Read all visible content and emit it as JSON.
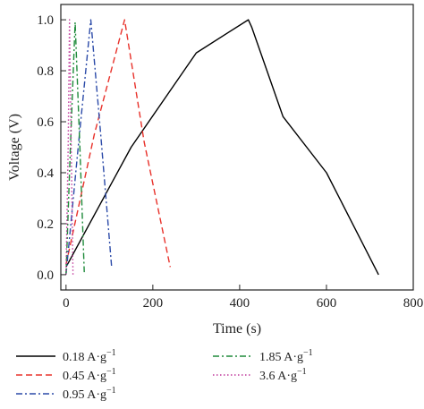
{
  "chart_data": {
    "type": "line",
    "title": "",
    "xlabel": "Time (s)",
    "ylabel": "Voltage (V)",
    "xlim": [
      -12,
      800
    ],
    "ylim": [
      -0.06,
      1.06
    ],
    "xticks": [
      0,
      200,
      400,
      600,
      800
    ],
    "xtick_labels": [
      "0",
      "200",
      "400",
      "600",
      "800"
    ],
    "yticks": [
      0.0,
      0.2,
      0.4,
      0.6,
      0.8,
      1.0
    ],
    "ytick_labels": [
      "0.0",
      "0.2",
      "0.4",
      "0.6",
      "0.8",
      "1.0"
    ],
    "grid": false,
    "legend_position": "bottom",
    "series": [
      {
        "name": "0.18 A·g",
        "name_superscript": "−1",
        "color": "#000000",
        "dash": "solid",
        "points": [
          [
            0,
            0.03
          ],
          [
            150,
            0.5
          ],
          [
            300,
            0.87
          ],
          [
            420,
            1.0
          ],
          [
            428,
            0.97
          ],
          [
            500,
            0.62
          ],
          [
            600,
            0.4
          ],
          [
            720,
            0.0
          ]
        ]
      },
      {
        "name": "0.45 A·g",
        "name_superscript": "−1",
        "color": "#e8312a",
        "dash": "dashed",
        "points": [
          [
            0,
            0.04
          ],
          [
            65,
            0.55
          ],
          [
            135,
            1.0
          ],
          [
            180,
            0.52
          ],
          [
            240,
            0.03
          ]
        ]
      },
      {
        "name": "0.95 A·g",
        "name_superscript": "−1",
        "color": "#2b4aa8",
        "dash": "dashdot",
        "points": [
          [
            0,
            0.0
          ],
          [
            28,
            0.5
          ],
          [
            57,
            1.0
          ],
          [
            80,
            0.55
          ],
          [
            105,
            0.03
          ]
        ]
      },
      {
        "name": "1.85 A·g",
        "name_superscript": "−1",
        "color": "#1e8a3a",
        "dash": "dashdot",
        "points": [
          [
            0,
            0.0
          ],
          [
            10,
            0.5
          ],
          [
            21,
            0.99
          ],
          [
            32,
            0.5
          ],
          [
            42,
            0.01
          ]
        ]
      },
      {
        "name": "3.6 A·g",
        "name_superscript": "−1",
        "color": "#c0399b",
        "dash": "dotted",
        "points": [
          [
            0,
            0.0
          ],
          [
            5,
            0.5
          ],
          [
            8,
            1.0
          ],
          [
            12,
            0.5
          ],
          [
            16,
            0.0
          ]
        ]
      }
    ],
    "legend_layout": [
      [
        0,
        3
      ],
      [
        1,
        4
      ],
      [
        2
      ]
    ]
  }
}
